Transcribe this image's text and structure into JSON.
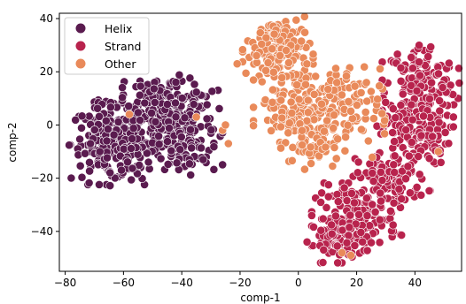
{
  "chart_data": {
    "type": "scatter",
    "title": "",
    "xlabel": "comp-1",
    "ylabel": "comp-2",
    "xlim": [
      -82,
      56
    ],
    "ylim": [
      -55,
      42
    ],
    "xticks": [
      -80,
      -60,
      -40,
      -20,
      0,
      20,
      40
    ],
    "yticks": [
      -40,
      -20,
      0,
      20,
      40
    ],
    "grid": false,
    "legend_position": "top-left",
    "series": [
      {
        "name": "Helix",
        "color": "#5a1b4f",
        "clusters": [
          {
            "cx": -48,
            "cy": 0,
            "sx": 10,
            "sy": 7.5,
            "n": 260
          },
          {
            "cx": -66,
            "cy": -7,
            "sx": 6,
            "sy": 7,
            "n": 150
          },
          {
            "cx": -58,
            "cy": -14,
            "sx": 3,
            "sy": 4,
            "n": 40
          },
          {
            "cx": -45,
            "cy": 10,
            "sx": 7,
            "sy": 4,
            "n": 80
          },
          {
            "cx": -40,
            "cy": -10,
            "sx": 5,
            "sy": 4,
            "n": 50
          }
        ]
      },
      {
        "name": "Strand",
        "color": "#b8234d",
        "clusters": [
          {
            "cx": 42,
            "cy": 15,
            "sx": 6,
            "sy": 8,
            "n": 160
          },
          {
            "cx": 40,
            "cy": -3,
            "sx": 6,
            "sy": 6,
            "n": 120
          },
          {
            "cx": 32,
            "cy": -20,
            "sx": 6,
            "sy": 5,
            "n": 110
          },
          {
            "cx": 20,
            "cy": -35,
            "sx": 7,
            "sy": 6,
            "n": 150
          },
          {
            "cx": 14,
            "cy": -43,
            "sx": 5,
            "sy": 4,
            "n": 60
          }
        ]
      },
      {
        "name": "Other",
        "color": "#e98a5a",
        "clusters": [
          {
            "cx": -7,
            "cy": 28,
            "sx": 5.5,
            "sy": 7,
            "n": 170
          },
          {
            "cx": 0,
            "cy": 8,
            "sx": 7,
            "sy": 7,
            "n": 120
          },
          {
            "cx": 12,
            "cy": 5,
            "sx": 8,
            "sy": 8,
            "n": 120
          },
          {
            "cx": 5,
            "cy": -8,
            "sx": 5,
            "sy": 4,
            "n": 40
          }
        ],
        "outliers": [
          [
            -21,
            23
          ],
          [
            -24,
            -7
          ],
          [
            -26,
            -2
          ],
          [
            -25,
            0
          ],
          [
            -35,
            3
          ],
          [
            -58,
            4
          ],
          [
            18,
            -49
          ],
          [
            15,
            -48
          ],
          [
            48,
            -10
          ]
        ]
      }
    ]
  }
}
